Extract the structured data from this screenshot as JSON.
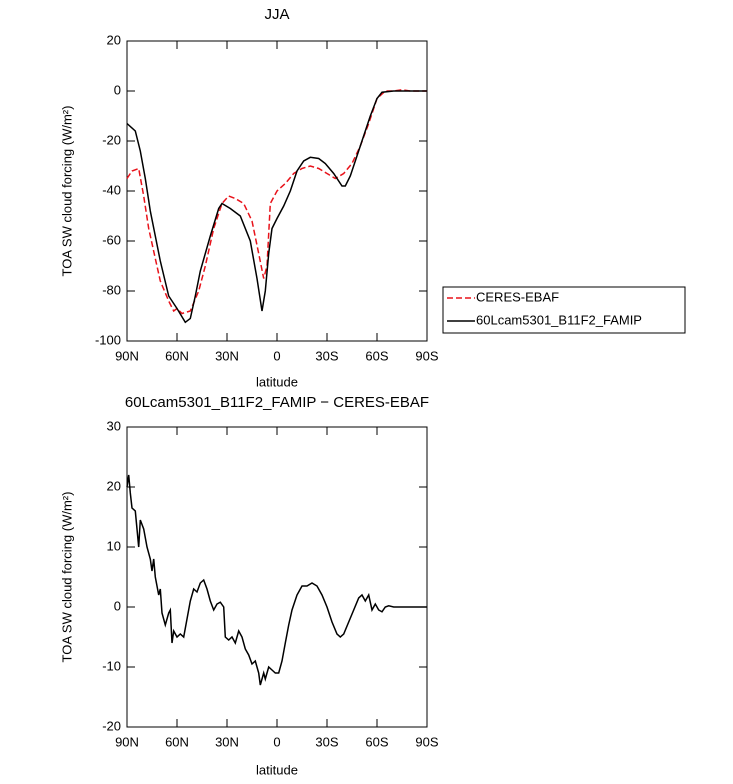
{
  "chart_data": [
    {
      "type": "line",
      "title": "JJA",
      "xlabel": "latitude",
      "ylabel": "TOA SW cloud forcing (W/m²)",
      "xlim": [
        90,
        -90
      ],
      "xticks": [
        {
          "value": 90,
          "label": "90N"
        },
        {
          "value": 60,
          "label": "60N"
        },
        {
          "value": 30,
          "label": "30N"
        },
        0,
        {
          "value": -30,
          "label": "30S"
        },
        {
          "value": -60,
          "label": "60S"
        },
        {
          "value": -90,
          "label": "90S"
        }
      ],
      "ylim": [
        -100,
        20
      ],
      "yticks": [
        -100,
        -80,
        -60,
        -40,
        -20,
        0,
        20
      ],
      "legend": "outside right",
      "series": [
        {
          "name": "CERES-EBAF",
          "color": "#e8121a",
          "dash": true,
          "x": [
            90,
            87,
            83,
            80,
            77,
            73,
            70,
            65,
            62,
            60,
            57,
            52,
            47,
            43,
            38,
            33,
            29,
            25,
            20,
            15,
            11,
            8,
            6,
            4,
            0,
            -5,
            -10,
            -15,
            -20,
            -25,
            -30,
            -35,
            -40,
            -45,
            -50,
            -55,
            -60,
            -65,
            -70,
            -75,
            -80,
            -90
          ],
          "values": [
            -35,
            -32,
            -31,
            -42,
            -55,
            -67,
            -76,
            -84,
            -88,
            -87,
            -89,
            -88,
            -80,
            -70,
            -55,
            -45,
            -42,
            -43,
            -45,
            -52,
            -65,
            -75,
            -70,
            -45,
            -40,
            -37,
            -33,
            -31,
            -30,
            -31,
            -33,
            -35,
            -33,
            -29,
            -22,
            -13,
            -3,
            0,
            0,
            0.5,
            0,
            0
          ]
        },
        {
          "name": "60Lcam5301_B11F2_FAMIP",
          "color": "#000000",
          "dash": false,
          "x": [
            90,
            85,
            82,
            79,
            76,
            73,
            70,
            65,
            60,
            55,
            52,
            49,
            46,
            40,
            35,
            33,
            28,
            22,
            16,
            12,
            9,
            7,
            5,
            3,
            0,
            -4,
            -8,
            -12,
            -16,
            -20,
            -25,
            -29,
            -34,
            -39,
            -41,
            -44,
            -50,
            -56,
            -60,
            -63,
            -70,
            -80,
            -90
          ],
          "values": [
            -13,
            -16,
            -24,
            -35,
            -48,
            -58,
            -68,
            -82,
            -87,
            -92.5,
            -91,
            -82,
            -72,
            -58,
            -47,
            -45,
            -47,
            -50,
            -60,
            -75,
            -88,
            -80,
            -65,
            -55,
            -51,
            -46,
            -40,
            -32,
            -28,
            -26.5,
            -27,
            -29,
            -33,
            -38,
            -38,
            -34,
            -22,
            -10,
            -3,
            -0.5,
            0,
            0,
            0
          ]
        }
      ]
    },
    {
      "type": "line",
      "title": "60Lcam5301_B11F2_FAMIP − CERES-EBAF",
      "xlabel": "latitude",
      "ylabel": "TOA SW cloud forcing (W/m²)",
      "xlim": [
        90,
        -90
      ],
      "xticks": [
        {
          "value": 90,
          "label": "90N"
        },
        {
          "value": 60,
          "label": "60N"
        },
        {
          "value": 30,
          "label": "30N"
        },
        0,
        {
          "value": -30,
          "label": "30S"
        },
        {
          "value": -60,
          "label": "60S"
        },
        {
          "value": -90,
          "label": "90S"
        }
      ],
      "ylim": [
        -20,
        30
      ],
      "yticks": [
        -20,
        -10,
        0,
        10,
        20,
        30
      ],
      "series": [
        {
          "color": "#000000",
          "dash": false,
          "x": [
            90,
            89,
            88,
            87,
            85,
            84,
            83,
            82,
            80,
            78,
            76,
            75,
            74,
            73,
            71,
            70,
            69,
            67,
            65,
            64,
            63,
            62,
            60,
            58,
            56,
            54,
            52,
            50,
            48,
            46,
            44,
            42,
            40,
            38,
            36,
            34,
            32,
            31,
            29,
            27,
            25,
            23,
            21,
            19,
            17,
            15,
            13,
            11,
            10,
            8,
            7,
            5,
            3,
            1,
            -1,
            -3,
            -5,
            -7,
            -9,
            -12,
            -15,
            -18,
            -21,
            -24,
            -27,
            -30,
            -33,
            -36,
            -38,
            -40,
            -43,
            -46,
            -49,
            -51,
            -53,
            -55,
            -57,
            -59,
            -61,
            -63,
            -65,
            -67,
            -70,
            -80,
            -90
          ],
          "values": [
            20,
            22,
            19,
            16.5,
            16,
            13,
            10,
            14.5,
            13,
            10,
            8,
            6,
            8,
            5,
            2,
            3,
            -1,
            -3,
            -1,
            -0.5,
            -6,
            -4,
            -5,
            -4.5,
            -5,
            -2,
            1,
            3,
            2.5,
            4,
            4.5,
            3,
            1,
            -0.5,
            0.5,
            0.8,
            0,
            -5,
            -5.5,
            -5,
            -6,
            -4,
            -5,
            -7,
            -8,
            -9.5,
            -9,
            -11,
            -13,
            -11,
            -12,
            -10,
            -10.5,
            -11,
            -11,
            -9,
            -6,
            -3,
            -0.5,
            2,
            3.5,
            3.5,
            4,
            3.5,
            2,
            0,
            -2.5,
            -4.5,
            -5,
            -4.5,
            -2.5,
            -0.5,
            1.5,
            2,
            1,
            2,
            -0.5,
            0.5,
            -0.5,
            -0.8,
            0,
            0.2,
            0,
            0,
            0
          ]
        }
      ]
    }
  ]
}
